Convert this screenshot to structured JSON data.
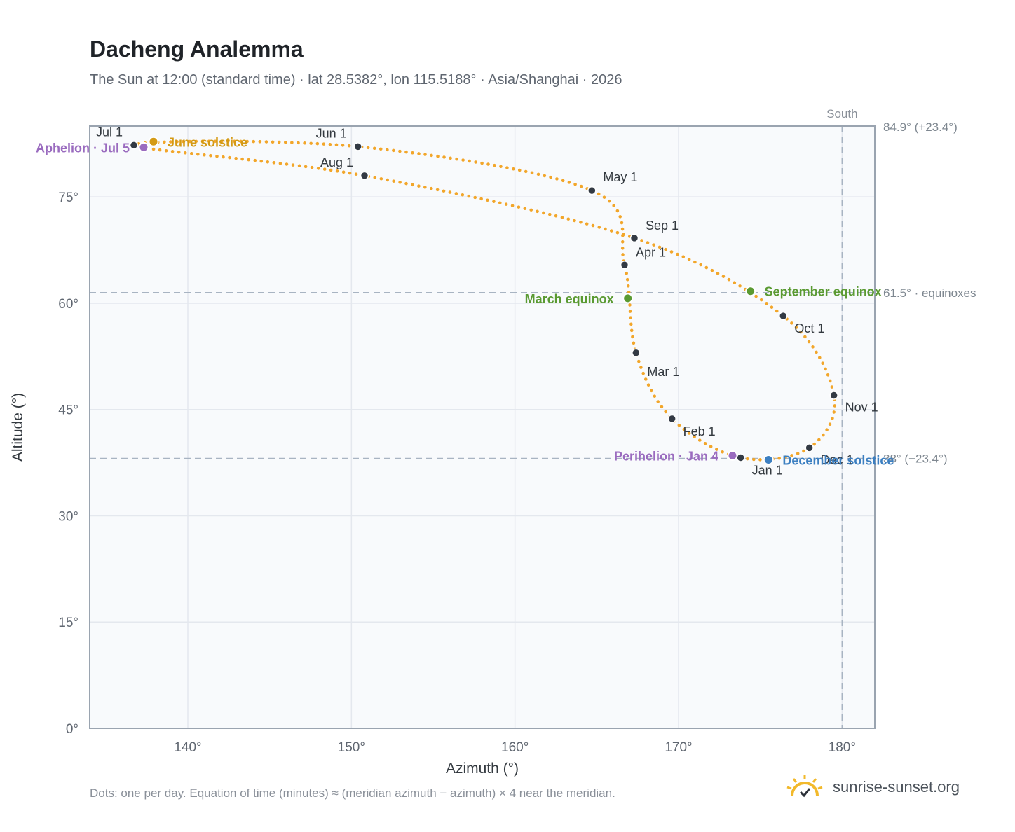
{
  "title": "Dacheng Analemma",
  "subtitle": "The Sun at 12:00 (standard time) · lat 28.5382°, lon 115.5188° · Asia/Shanghai · 2026",
  "footnote": "Dots: one per day. Equation of time (minutes) ≈ (meridian azimuth − azimuth) × 4 near the meridian.",
  "brand": {
    "text": "sunrise-sunset.org",
    "icon": "sun-check-icon"
  },
  "colors": {
    "curve": "#f2a62a",
    "month_marker": "#333a44",
    "solstice_june": "#d49a14",
    "solstice_december": "#3c7fc1",
    "equinox": "#5a9a32",
    "apsis": "#9a6bbf",
    "reference_line": "#a8b4c2",
    "plot_bg": "#f8fafc",
    "grid": "#e4e8ee"
  },
  "chart_data": {
    "type": "scatter",
    "title": "Dacheng Analemma",
    "xlabel": "Azimuth (°)",
    "ylabel": "Altitude (°)",
    "xlim": [
      134,
      182
    ],
    "ylim": [
      0,
      85
    ],
    "x_ticks": [
      140,
      150,
      160,
      170,
      180
    ],
    "x_tick_labels": [
      "140°",
      "150°",
      "160°",
      "170°",
      "180°"
    ],
    "y_ticks": [
      0,
      15,
      30,
      45,
      60,
      75
    ],
    "y_tick_labels": [
      "0°",
      "15°",
      "30°",
      "45°",
      "60°",
      "75°"
    ],
    "grid": true,
    "south_line": {
      "azimuth": 180,
      "label": "South"
    },
    "reference_lines": [
      {
        "altitude": 84.9,
        "label": "84.9° (+23.4°)"
      },
      {
        "altitude": 61.5,
        "label": "61.5° · equinoxes"
      },
      {
        "altitude": 38.1,
        "label": "38° (−23.4°)"
      }
    ],
    "month_markers": [
      {
        "label": "Jan 1",
        "az": 173.8,
        "alt": 38.2
      },
      {
        "label": "Feb 1",
        "az": 169.6,
        "alt": 43.7
      },
      {
        "label": "Mar 1",
        "az": 167.4,
        "alt": 53.0
      },
      {
        "label": "Apr 1",
        "az": 166.7,
        "alt": 65.4
      },
      {
        "label": "May 1",
        "az": 164.7,
        "alt": 75.9
      },
      {
        "label": "Jun 1",
        "az": 150.4,
        "alt": 82.1
      },
      {
        "label": "Jul 1",
        "az": 136.7,
        "alt": 82.3
      },
      {
        "label": "Aug 1",
        "az": 150.8,
        "alt": 78.0
      },
      {
        "label": "Sep 1",
        "az": 167.3,
        "alt": 69.2
      },
      {
        "label": "Oct 1",
        "az": 176.4,
        "alt": 58.2
      },
      {
        "label": "Nov 1",
        "az": 179.5,
        "alt": 47.0
      },
      {
        "label": "Dec 1",
        "az": 178.0,
        "alt": 39.6
      }
    ],
    "events": [
      {
        "label": "June solstice",
        "az": 137.9,
        "alt": 82.8,
        "kind": "solstice_june"
      },
      {
        "label": "December solstice",
        "az": 175.5,
        "alt": 37.9,
        "kind": "solstice_december"
      },
      {
        "label": "March equinox",
        "az": 166.9,
        "alt": 60.7,
        "kind": "equinox"
      },
      {
        "label": "September equinox",
        "az": 174.4,
        "alt": 61.7,
        "kind": "equinox"
      },
      {
        "label": "Aphelion · Jul 5",
        "az": 137.3,
        "alt": 82.0,
        "kind": "apsis"
      },
      {
        "label": "Perihelion · Jan 4",
        "az": 173.3,
        "alt": 38.5,
        "kind": "apsis"
      }
    ]
  }
}
